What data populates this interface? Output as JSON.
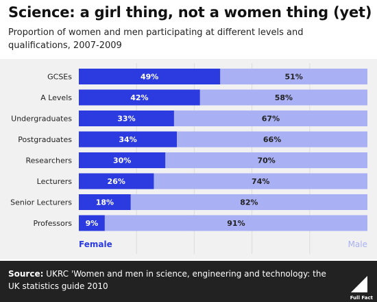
{
  "colors": {
    "female": "#2b3be0",
    "male": "#a9b0f3",
    "footer_bg": "#222222"
  },
  "title": "Science: a girl thing, not a women thing (yet)",
  "subtitle": "Proportion of women and men participating at different levels and qualifications, 2007-2009",
  "footer": {
    "source_label": "Source:",
    "source_text": "UKRC 'Women and men in science, engineering and technology: the UK statistics guide 2010",
    "logo_text": "Full Fact"
  },
  "chart_data": {
    "type": "bar",
    "orientation": "horizontal",
    "stacked": true,
    "categories": [
      "GCSEs",
      "A Levels",
      "Undergraduates",
      "Postgraduates",
      "Researchers",
      "Lecturers",
      "Senior Lecturers",
      "Professors"
    ],
    "series": [
      {
        "name": "Female",
        "values": [
          49,
          42,
          33,
          34,
          30,
          26,
          18,
          9
        ],
        "labels": [
          "49%",
          "42%",
          "33%",
          "34%",
          "30%",
          "26%",
          "18%",
          "9%"
        ]
      },
      {
        "name": "Male",
        "values": [
          51,
          58,
          67,
          66,
          70,
          74,
          82,
          91
        ],
        "labels": [
          "51%",
          "58%",
          "67%",
          "66%",
          "70%",
          "74%",
          "82%",
          "91%"
        ]
      }
    ],
    "xlim": [
      0,
      100
    ],
    "grid": true,
    "legend": "bottom"
  }
}
